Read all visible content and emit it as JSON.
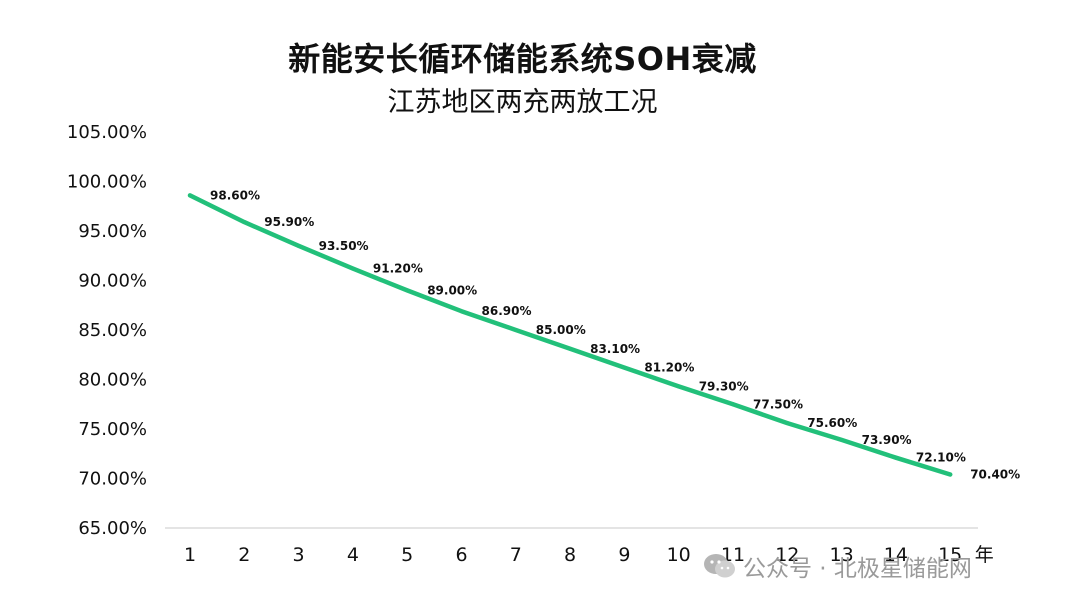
{
  "chart_data": {
    "type": "line",
    "title": "新能安长循环储能系统SOH衰减",
    "subtitle": "江苏地区两充两放工况",
    "xlabel": "年",
    "ylabel": "",
    "x": [
      1,
      2,
      3,
      4,
      5,
      6,
      7,
      8,
      9,
      10,
      11,
      12,
      13,
      14,
      15
    ],
    "x_tick_labels": [
      "1",
      "2",
      "3",
      "4",
      "5",
      "6",
      "7",
      "8",
      "9",
      "10",
      "11",
      "12",
      "13",
      "14",
      "15"
    ],
    "series": [
      {
        "values": [
          98.6,
          95.9,
          93.5,
          91.2,
          89.0,
          86.9,
          85.0,
          83.1,
          81.2,
          79.3,
          77.5,
          75.6,
          73.9,
          72.1,
          70.4
        ],
        "data_labels": [
          "98.60%",
          "95.90%",
          "93.50%",
          "91.20%",
          "89.00%",
          "86.90%",
          "85.00%",
          "83.10%",
          "81.20%",
          "79.30%",
          "77.50%",
          "75.60%",
          "73.90%",
          "72.10%",
          "70.40%"
        ],
        "color": "#22c07a"
      }
    ],
    "ylim": [
      65,
      105
    ],
    "y_ticks": [
      65,
      70,
      75,
      80,
      85,
      90,
      95,
      100,
      105
    ],
    "y_tick_labels": [
      "65.00%",
      "70.00%",
      "75.00%",
      "80.00%",
      "85.00%",
      "90.00%",
      "95.00%",
      "100.00%",
      "105.00%"
    ],
    "grid": false,
    "legend": "none"
  },
  "watermark": {
    "icon": "wechat-icon",
    "text": "公众号 · 北极星储能网"
  }
}
